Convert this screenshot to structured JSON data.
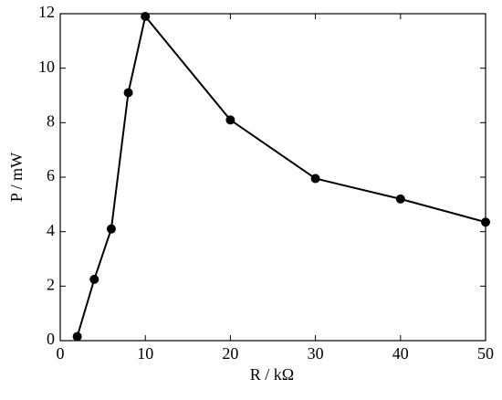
{
  "chart_data": {
    "type": "line",
    "x": [
      2,
      4,
      6,
      8,
      10,
      20,
      30,
      40,
      50
    ],
    "series": [
      {
        "values": [
          0.15,
          2.25,
          4.1,
          9.1,
          11.9,
          8.1,
          5.95,
          5.2,
          4.35
        ],
        "color": "#000000"
      }
    ],
    "xlim": [
      0,
      50
    ],
    "xticks": [
      0,
      10,
      20,
      30,
      40,
      50
    ],
    "ylim": [
      0,
      12
    ],
    "yticks": [
      0,
      2,
      4,
      6,
      8,
      10,
      12
    ],
    "xlabel": "R / kΩ",
    "ylabel": "P / mW",
    "grid": false
  }
}
